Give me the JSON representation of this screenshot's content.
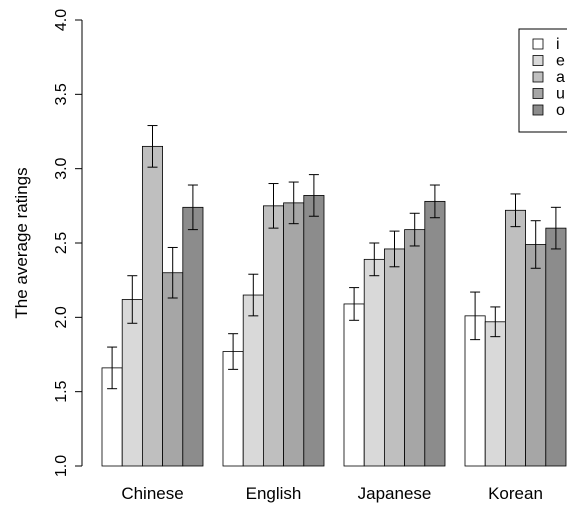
{
  "chart_data": {
    "type": "bar",
    "title": "",
    "xlabel": "",
    "ylabel": "The average ratings",
    "ylim": [
      1.0,
      4.0
    ],
    "yticks": [
      "1.0",
      "1.5",
      "2.0",
      "2.5",
      "3.0",
      "3.5",
      "4.0"
    ],
    "categories": [
      "Chinese",
      "English",
      "Japanese",
      "Korean"
    ],
    "legend_position": "top-right",
    "error_bars": true,
    "series": [
      {
        "name": "i",
        "color": "#ffffff",
        "values": [
          1.66,
          1.77,
          2.09,
          2.01
        ],
        "errors": [
          0.14,
          0.12,
          0.11,
          0.16
        ]
      },
      {
        "name": "e",
        "color": "#d9d9d9",
        "values": [
          2.12,
          2.15,
          2.39,
          1.97
        ],
        "errors": [
          0.16,
          0.14,
          0.11,
          0.1
        ]
      },
      {
        "name": "a",
        "color": "#bfbfbf",
        "values": [
          3.15,
          2.75,
          2.46,
          2.72
        ],
        "errors": [
          0.14,
          0.15,
          0.12,
          0.11
        ]
      },
      {
        "name": "u",
        "color": "#a6a6a6",
        "values": [
          2.3,
          2.77,
          2.59,
          2.49
        ],
        "errors": [
          0.17,
          0.14,
          0.11,
          0.16
        ]
      },
      {
        "name": "o",
        "color": "#8c8c8c",
        "values": [
          2.74,
          2.82,
          2.78,
          2.6
        ],
        "errors": [
          0.15,
          0.14,
          0.11,
          0.14
        ]
      }
    ]
  }
}
